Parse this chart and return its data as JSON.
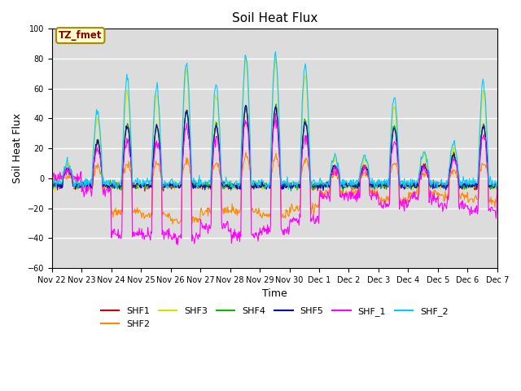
{
  "title": "Soil Heat Flux",
  "xlabel": "Time",
  "ylabel": "Soil Heat Flux",
  "ylim": [
    -60,
    100
  ],
  "yticks": [
    -60,
    -40,
    -20,
    0,
    20,
    40,
    60,
    80,
    100
  ],
  "xtick_labels": [
    "Nov 22",
    "Nov 23",
    "Nov 24",
    "Nov 25",
    "Nov 26",
    "Nov 27",
    "Nov 28",
    "Nov 29",
    "Nov 30",
    "Dec 1",
    "Dec 2",
    "Dec 3",
    "Dec 4",
    "Dec 5",
    "Dec 6",
    "Dec 7"
  ],
  "series_names": [
    "SHF1",
    "SHF2",
    "SHF3",
    "SHF4",
    "SHF5",
    "SHF_1",
    "SHF_2"
  ],
  "series_colors": [
    "#cc0000",
    "#ff8800",
    "#dddd00",
    "#00bb00",
    "#0000cc",
    "#ff00ff",
    "#00ccff"
  ],
  "annotation_text": "TZ_fmet",
  "annotation_bg": "#ffffcc",
  "annotation_border": "#aa8800",
  "background_color": "#dcdcdc",
  "grid_color": "white",
  "n_points": 720,
  "title_fontsize": 11,
  "label_fontsize": 9,
  "tick_fontsize": 7
}
